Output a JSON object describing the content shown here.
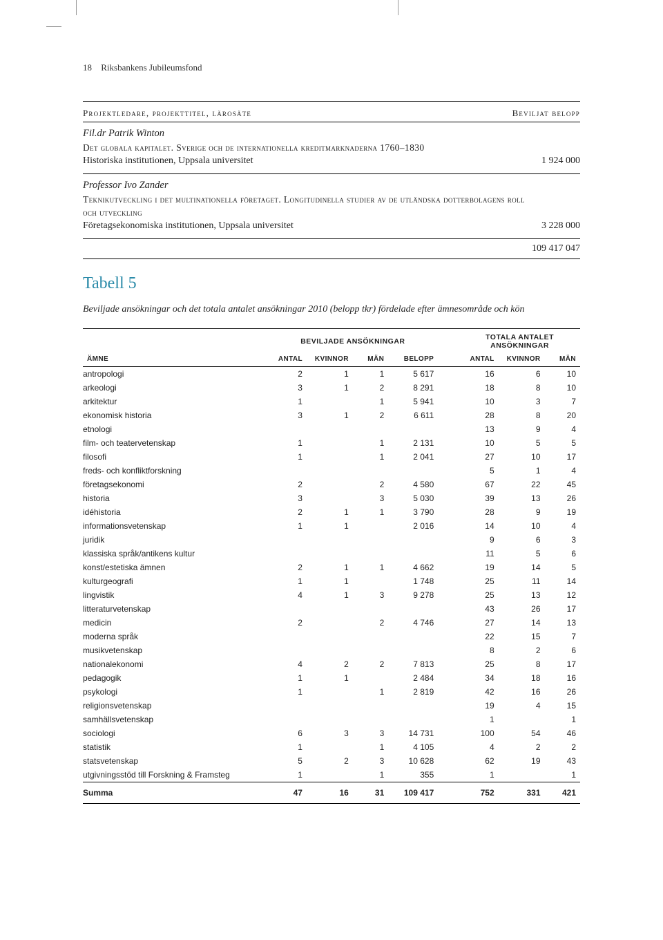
{
  "page": {
    "number": "18",
    "running_head": "Riksbankens Jubileumsfond"
  },
  "section_head": {
    "left": "Projektledare, projekttitel, lärosäte",
    "right": "Beviljat belopp"
  },
  "projects": [
    {
      "leader": "Fil.dr Patrik Winton",
      "title": "Det globala kapitalet. Sverige och de internationella kreditmarknaderna 1760–1830",
      "institution": "Historiska institutionen, Uppsala universitet",
      "amount": "1 924 000"
    },
    {
      "leader": "Professor Ivo Zander",
      "title": "Teknikutveckling i det multinationella företaget. Longitudinella studier av de utländska dotterbolagens roll och utveckling",
      "institution": "Företagsekonomiska institutionen, Uppsala universitet",
      "amount": "3 228 000"
    }
  ],
  "total": "109 417 047",
  "tabell_label": "Tabell 5",
  "caption": "Beviljade ansökningar och det totala antalet ansökningar 2010 (belopp tkr) fördelade efter ämnesområde och kön",
  "table": {
    "group_headers": [
      "BEVILJADE ANSÖKNINGAR",
      "TOTALA ANTALET ANSÖKNINGAR"
    ],
    "columns": [
      "ÄMNE",
      "ANTAL",
      "KVINNOR",
      "MÄN",
      "BELOPP",
      "ANTAL",
      "KVINNOR",
      "MÄN"
    ],
    "rows": [
      [
        "antropologi",
        "2",
        "1",
        "1",
        "5 617",
        "16",
        "6",
        "10"
      ],
      [
        "arkeologi",
        "3",
        "1",
        "2",
        "8 291",
        "18",
        "8",
        "10"
      ],
      [
        "arkitektur",
        "1",
        "",
        "1",
        "5 941",
        "10",
        "3",
        "7"
      ],
      [
        "ekonomisk historia",
        "3",
        "1",
        "2",
        "6 611",
        "28",
        "8",
        "20"
      ],
      [
        "etnologi",
        "",
        "",
        "",
        "",
        "13",
        "9",
        "4"
      ],
      [
        "film- och teatervetenskap",
        "1",
        "",
        "1",
        "2 131",
        "10",
        "5",
        "5"
      ],
      [
        "filosofi",
        "1",
        "",
        "1",
        "2 041",
        "27",
        "10",
        "17"
      ],
      [
        "freds- och konfliktforskning",
        "",
        "",
        "",
        "",
        "5",
        "1",
        "4"
      ],
      [
        "företagsekonomi",
        "2",
        "",
        "2",
        "4 580",
        "67",
        "22",
        "45"
      ],
      [
        "historia",
        "3",
        "",
        "3",
        "5 030",
        "39",
        "13",
        "26"
      ],
      [
        "idéhistoria",
        "2",
        "1",
        "1",
        "3 790",
        "28",
        "9",
        "19"
      ],
      [
        "informationsvetenskap",
        "1",
        "1",
        "",
        "2 016",
        "14",
        "10",
        "4"
      ],
      [
        "juridik",
        "",
        "",
        "",
        "",
        "9",
        "6",
        "3"
      ],
      [
        "klassiska språk/antikens kultur",
        "",
        "",
        "",
        "",
        "11",
        "5",
        "6"
      ],
      [
        "konst/estetiska ämnen",
        "2",
        "1",
        "1",
        "4 662",
        "19",
        "14",
        "5"
      ],
      [
        "kulturgeografi",
        "1",
        "1",
        "",
        "1 748",
        "25",
        "11",
        "14"
      ],
      [
        "lingvistik",
        "4",
        "1",
        "3",
        "9 278",
        "25",
        "13",
        "12"
      ],
      [
        "litteraturvetenskap",
        "",
        "",
        "",
        "",
        "43",
        "26",
        "17"
      ],
      [
        "medicin",
        "2",
        "",
        "2",
        "4 746",
        "27",
        "14",
        "13"
      ],
      [
        "moderna språk",
        "",
        "",
        "",
        "",
        "22",
        "15",
        "7"
      ],
      [
        "musikvetenskap",
        "",
        "",
        "",
        "",
        "8",
        "2",
        "6"
      ],
      [
        "nationalekonomi",
        "4",
        "2",
        "2",
        "7 813",
        "25",
        "8",
        "17"
      ],
      [
        "pedagogik",
        "1",
        "1",
        "",
        "2 484",
        "34",
        "18",
        "16"
      ],
      [
        "psykologi",
        "1",
        "",
        "1",
        "2 819",
        "42",
        "16",
        "26"
      ],
      [
        "religionsvetenskap",
        "",
        "",
        "",
        "",
        "19",
        "4",
        "15"
      ],
      [
        "samhällsvetenskap",
        "",
        "",
        "",
        "",
        "1",
        "",
        "1"
      ],
      [
        "sociologi",
        "6",
        "3",
        "3",
        "14 731",
        "100",
        "54",
        "46"
      ],
      [
        "statistik",
        "1",
        "",
        "1",
        "4 105",
        "4",
        "2",
        "2"
      ],
      [
        "statsvetenskap",
        "5",
        "2",
        "3",
        "10 628",
        "62",
        "19",
        "43"
      ],
      [
        "utgivningsstöd till Forskning & Framsteg",
        "1",
        "",
        "1",
        "355",
        "1",
        "",
        "1"
      ]
    ],
    "footer": [
      "Summa",
      "47",
      "16",
      "31",
      "109 417",
      "752",
      "331",
      "421"
    ]
  }
}
